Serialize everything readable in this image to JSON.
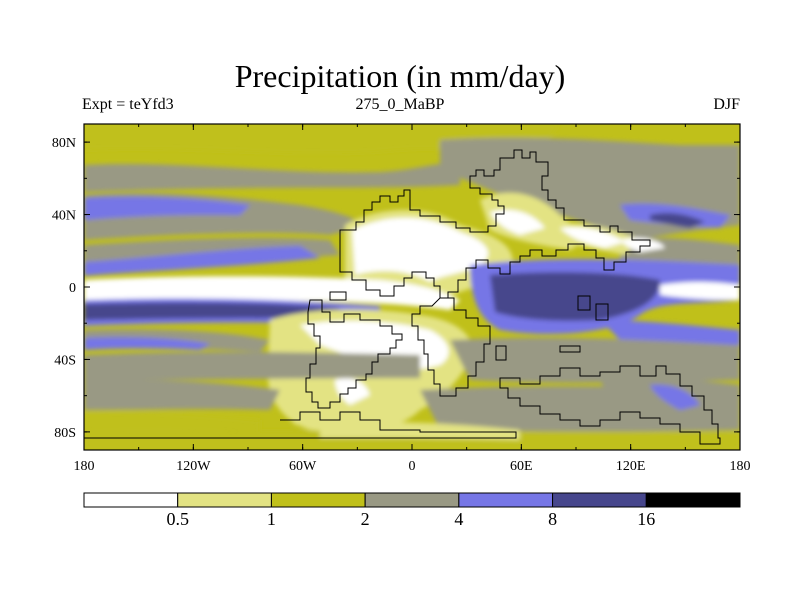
{
  "title": "Precipitation (in mm/day)",
  "subtitle_left": "Expt = teYfd3",
  "subtitle_center": "275_0_MaBP",
  "subtitle_right": "DJF",
  "y_ticks": [
    "80N",
    "40N",
    "0",
    "40S",
    "80S"
  ],
  "x_ticks": [
    "180",
    "120W",
    "60W",
    "0",
    "60E",
    "120E",
    "180"
  ],
  "colorbar": {
    "colors": [
      "#ffffff",
      "#e3e383",
      "#c0c01a",
      "#999984",
      "#7676e6",
      "#46468c",
      "#000000"
    ],
    "labels": [
      "0.5",
      "1",
      "2",
      "4",
      "8",
      "16"
    ]
  }
}
